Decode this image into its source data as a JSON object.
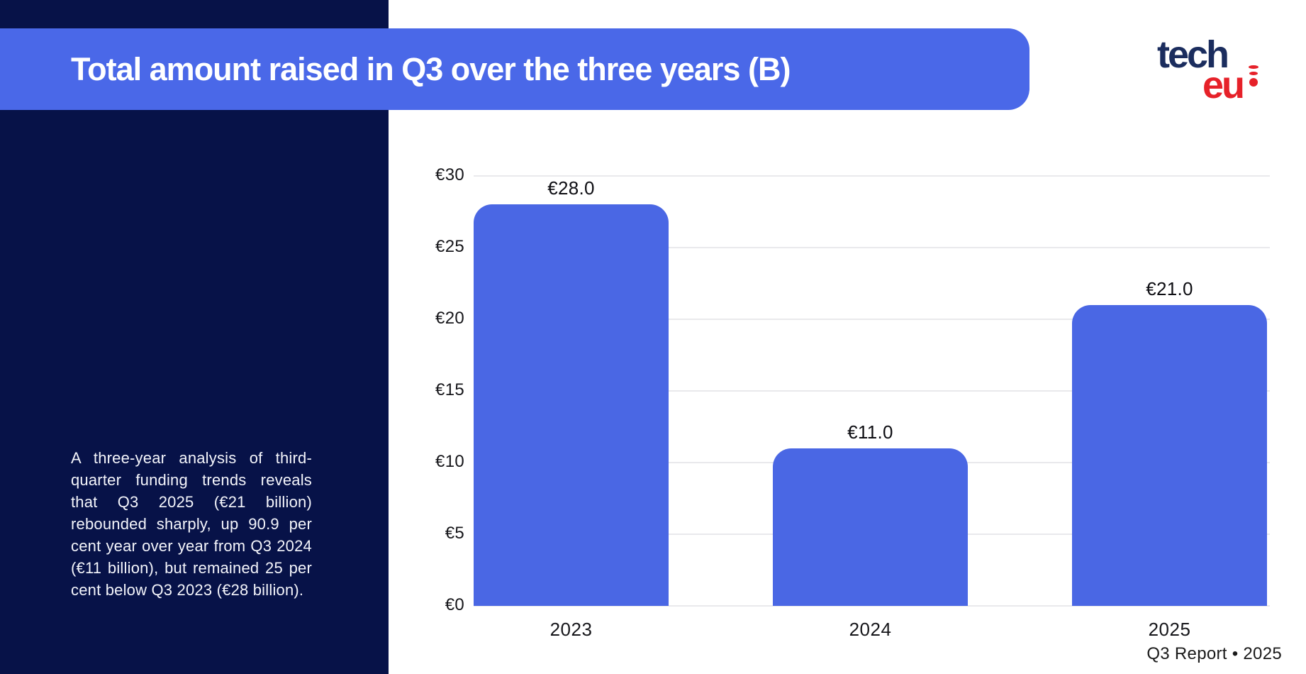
{
  "page": {
    "background": "#ffffff"
  },
  "header": {
    "title": "Total amount raised in Q3 over the three years (B)",
    "banner_color": "#4a68e8",
    "text_color": "#ffffff"
  },
  "logo": {
    "line1": "tech",
    "line2": "eu",
    "navy": "#1b2d5e",
    "red": "#e62129"
  },
  "sidebar": {
    "background": "#071248",
    "paragraph": "A three-year analysis of third-quarter funding trends reveals that Q3 2025 (€21 billion) rebounded sharply, up 90.9 per cent year over year from Q3 2024 (€11 billion), but remained 25 per cent below Q3 2023 (€28 billion)."
  },
  "footer": {
    "label": "Q3 Report • 2025"
  },
  "chart_data": {
    "type": "bar",
    "title": "Total amount raised in Q3 over the three years (B)",
    "categories": [
      "2023",
      "2024",
      "2025"
    ],
    "values": [
      28.0,
      11.0,
      21.0
    ],
    "value_labels": [
      "€28.0",
      "€11.0",
      "€21.0"
    ],
    "y_ticks": [
      0,
      5,
      10,
      15,
      20,
      25,
      30
    ],
    "y_tick_labels": [
      "€0",
      "€5",
      "€10",
      "€15",
      "€20",
      "€25",
      "€30"
    ],
    "ylim": [
      0,
      30
    ],
    "xlabel": "",
    "ylabel": "",
    "grid": true,
    "legend_position": "none",
    "bar_color": "#4a67e4",
    "gridline_color": "#e9e9ec",
    "tick_text_color": "#16161a",
    "value_text_color": "#0d0d12"
  }
}
